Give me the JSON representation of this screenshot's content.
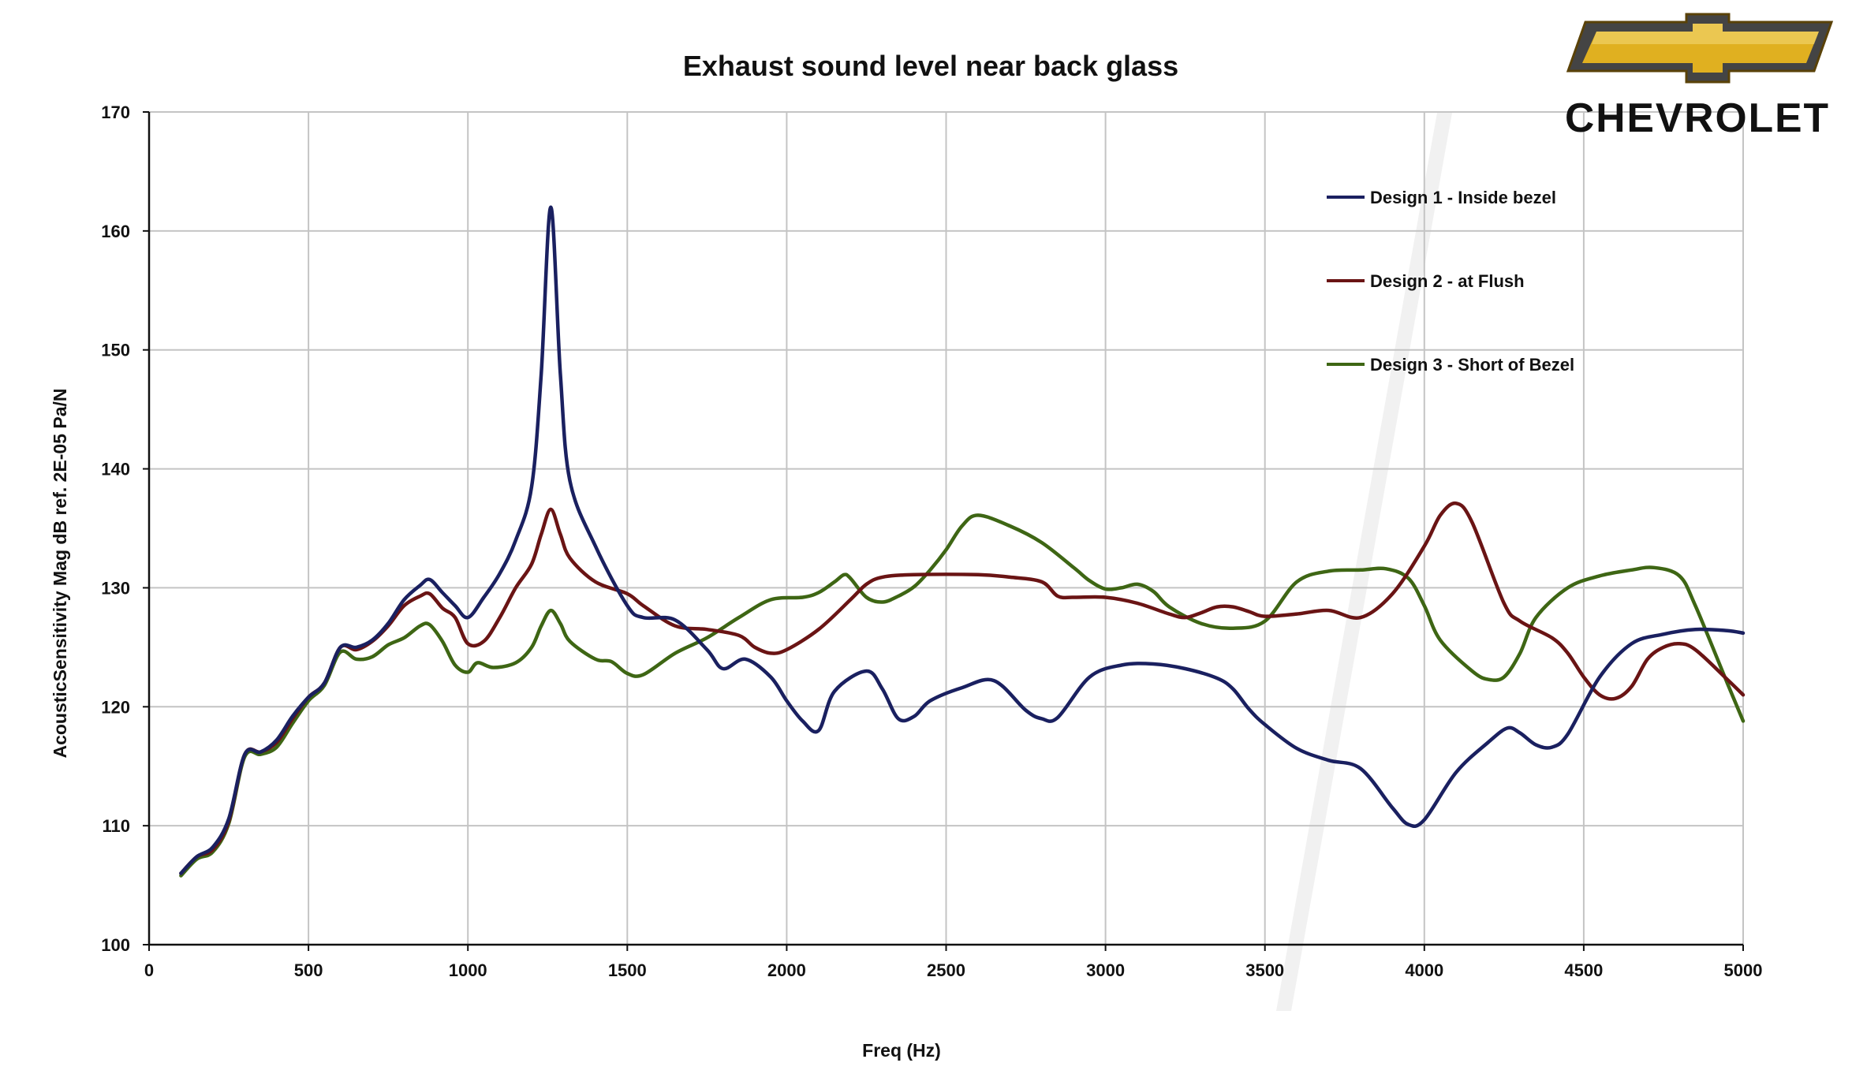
{
  "chart_data": {
    "type": "line",
    "title": "Exhaust sound level near back glass",
    "xlabel": "Freq (Hz)",
    "ylabel": "AcousticSensitivity Mag dB  ref. 2E-05 Pa/N",
    "xlim": [
      0,
      5000
    ],
    "ylim": [
      100,
      170
    ],
    "xticks": [
      0,
      500,
      1000,
      1500,
      2000,
      2500,
      3000,
      3500,
      4000,
      4500,
      5000
    ],
    "yticks": [
      100,
      110,
      120,
      130,
      140,
      150,
      160,
      170
    ],
    "grid": true,
    "legend_position": "top-right",
    "series": [
      {
        "name": "Design 1 - Inside bezel",
        "color": "#1a2060",
        "points": [
          [
            100,
            106
          ],
          [
            150,
            107.4
          ],
          [
            200,
            108.2
          ],
          [
            250,
            110.6
          ],
          [
            300,
            116
          ],
          [
            350,
            116.2
          ],
          [
            400,
            117.2
          ],
          [
            450,
            119.2
          ],
          [
            500,
            120.8
          ],
          [
            550,
            122
          ],
          [
            600,
            125
          ],
          [
            650,
            125
          ],
          [
            700,
            125.6
          ],
          [
            750,
            127
          ],
          [
            800,
            129
          ],
          [
            850,
            130.2
          ],
          [
            880,
            130.7
          ],
          [
            920,
            129.6
          ],
          [
            960,
            128.5
          ],
          [
            1000,
            127.5
          ],
          [
            1050,
            129.2
          ],
          [
            1100,
            131.2
          ],
          [
            1150,
            134
          ],
          [
            1200,
            138.5
          ],
          [
            1230,
            148
          ],
          [
            1260,
            162
          ],
          [
            1290,
            148
          ],
          [
            1320,
            139
          ],
          [
            1400,
            133.5
          ],
          [
            1500,
            128.5
          ],
          [
            1550,
            127.5
          ],
          [
            1650,
            127.3
          ],
          [
            1750,
            124.8
          ],
          [
            1800,
            123.2
          ],
          [
            1870,
            124
          ],
          [
            1950,
            122.5
          ],
          [
            2000,
            120.5
          ],
          [
            2050,
            118.8
          ],
          [
            2100,
            118
          ],
          [
            2150,
            121.3
          ],
          [
            2250,
            123
          ],
          [
            2300,
            121.5
          ],
          [
            2350,
            119
          ],
          [
            2400,
            119.2
          ],
          [
            2450,
            120.5
          ],
          [
            2550,
            121.6
          ],
          [
            2650,
            122.2
          ],
          [
            2750,
            119.7
          ],
          [
            2800,
            119
          ],
          [
            2850,
            119.1
          ],
          [
            2950,
            122.5
          ],
          [
            3050,
            123.5
          ],
          [
            3150,
            123.6
          ],
          [
            3250,
            123.2
          ],
          [
            3350,
            122.4
          ],
          [
            3400,
            121.5
          ],
          [
            3450,
            119.8
          ],
          [
            3500,
            118.5
          ],
          [
            3600,
            116.5
          ],
          [
            3700,
            115.5
          ],
          [
            3800,
            114.8
          ],
          [
            3900,
            111.5
          ],
          [
            3950,
            110.1
          ],
          [
            4000,
            110.5
          ],
          [
            4100,
            114.5
          ],
          [
            4200,
            117
          ],
          [
            4260,
            118.2
          ],
          [
            4300,
            117.8
          ],
          [
            4350,
            116.8
          ],
          [
            4400,
            116.6
          ],
          [
            4450,
            117.7
          ],
          [
            4550,
            122.5
          ],
          [
            4650,
            125.3
          ],
          [
            4750,
            126.1
          ],
          [
            4850,
            126.5
          ],
          [
            4950,
            126.4
          ],
          [
            5000,
            126.2
          ]
        ]
      },
      {
        "name": "Design 2 - at Flush",
        "color": "#6a1414",
        "points": [
          [
            100,
            106
          ],
          [
            150,
            107.4
          ],
          [
            200,
            108
          ],
          [
            250,
            110.4
          ],
          [
            300,
            116
          ],
          [
            350,
            116.2
          ],
          [
            400,
            117
          ],
          [
            450,
            119
          ],
          [
            500,
            120.8
          ],
          [
            550,
            122
          ],
          [
            600,
            125
          ],
          [
            650,
            124.8
          ],
          [
            700,
            125.5
          ],
          [
            750,
            126.8
          ],
          [
            800,
            128.5
          ],
          [
            850,
            129.3
          ],
          [
            880,
            129.5
          ],
          [
            920,
            128.3
          ],
          [
            960,
            127.5
          ],
          [
            1000,
            125.3
          ],
          [
            1050,
            125.5
          ],
          [
            1100,
            127.5
          ],
          [
            1150,
            130
          ],
          [
            1200,
            132
          ],
          [
            1230,
            134.5
          ],
          [
            1260,
            136.6
          ],
          [
            1290,
            134.5
          ],
          [
            1320,
            132.5
          ],
          [
            1400,
            130.5
          ],
          [
            1500,
            129.5
          ],
          [
            1550,
            128.5
          ],
          [
            1650,
            126.8
          ],
          [
            1750,
            126.5
          ],
          [
            1850,
            126
          ],
          [
            1900,
            125
          ],
          [
            1950,
            124.5
          ],
          [
            2000,
            124.8
          ],
          [
            2100,
            126.5
          ],
          [
            2200,
            129
          ],
          [
            2250,
            130.3
          ],
          [
            2300,
            130.9
          ],
          [
            2400,
            131.1
          ],
          [
            2600,
            131.1
          ],
          [
            2700,
            130.9
          ],
          [
            2800,
            130.5
          ],
          [
            2850,
            129.3
          ],
          [
            2900,
            129.2
          ],
          [
            3000,
            129.2
          ],
          [
            3100,
            128.7
          ],
          [
            3200,
            127.8
          ],
          [
            3250,
            127.5
          ],
          [
            3300,
            127.9
          ],
          [
            3350,
            128.4
          ],
          [
            3400,
            128.4
          ],
          [
            3450,
            128
          ],
          [
            3500,
            127.6
          ],
          [
            3600,
            127.8
          ],
          [
            3700,
            128.1
          ],
          [
            3800,
            127.5
          ],
          [
            3900,
            129.5
          ],
          [
            4000,
            133.5
          ],
          [
            4050,
            136.1
          ],
          [
            4100,
            137.1
          ],
          [
            4150,
            135.5
          ],
          [
            4250,
            128.7
          ],
          [
            4300,
            127.2
          ],
          [
            4400,
            125.8
          ],
          [
            4450,
            124.5
          ],
          [
            4500,
            122.5
          ],
          [
            4550,
            121
          ],
          [
            4600,
            120.7
          ],
          [
            4650,
            121.7
          ],
          [
            4700,
            124
          ],
          [
            4750,
            125
          ],
          [
            4800,
            125.3
          ],
          [
            4850,
            124.8
          ],
          [
            4950,
            122.3
          ],
          [
            5000,
            121
          ]
        ]
      },
      {
        "name": "Design 3 - Short of Bezel",
        "color": "#3e6614",
        "points": [
          [
            100,
            105.8
          ],
          [
            150,
            107.2
          ],
          [
            200,
            107.8
          ],
          [
            250,
            110.2
          ],
          [
            300,
            115.8
          ],
          [
            350,
            116
          ],
          [
            400,
            116.6
          ],
          [
            450,
            118.6
          ],
          [
            500,
            120.5
          ],
          [
            550,
            121.8
          ],
          [
            600,
            124.6
          ],
          [
            650,
            124
          ],
          [
            700,
            124.2
          ],
          [
            750,
            125.2
          ],
          [
            800,
            125.8
          ],
          [
            850,
            126.8
          ],
          [
            880,
            126.9
          ],
          [
            920,
            125.5
          ],
          [
            960,
            123.5
          ],
          [
            1000,
            122.9
          ],
          [
            1030,
            123.7
          ],
          [
            1080,
            123.3
          ],
          [
            1150,
            123.7
          ],
          [
            1200,
            125
          ],
          [
            1230,
            126.8
          ],
          [
            1260,
            128.1
          ],
          [
            1290,
            127
          ],
          [
            1320,
            125.5
          ],
          [
            1400,
            124
          ],
          [
            1450,
            123.8
          ],
          [
            1500,
            122.8
          ],
          [
            1550,
            122.7
          ],
          [
            1650,
            124.5
          ],
          [
            1750,
            125.8
          ],
          [
            1850,
            127.5
          ],
          [
            1950,
            129
          ],
          [
            2050,
            129.2
          ],
          [
            2100,
            129.6
          ],
          [
            2150,
            130.5
          ],
          [
            2180,
            131.1
          ],
          [
            2200,
            130.8
          ],
          [
            2250,
            129.2
          ],
          [
            2300,
            128.8
          ],
          [
            2350,
            129.3
          ],
          [
            2400,
            130.1
          ],
          [
            2450,
            131.5
          ],
          [
            2500,
            133.2
          ],
          [
            2550,
            135.2
          ],
          [
            2600,
            136.1
          ],
          [
            2700,
            135.2
          ],
          [
            2800,
            133.8
          ],
          [
            2900,
            131.7
          ],
          [
            2950,
            130.6
          ],
          [
            3000,
            129.9
          ],
          [
            3050,
            130
          ],
          [
            3100,
            130.3
          ],
          [
            3150,
            129.7
          ],
          [
            3200,
            128.4
          ],
          [
            3300,
            127
          ],
          [
            3400,
            126.6
          ],
          [
            3500,
            127.2
          ],
          [
            3600,
            130.5
          ],
          [
            3700,
            131.4
          ],
          [
            3800,
            131.5
          ],
          [
            3880,
            131.6
          ],
          [
            3950,
            130.8
          ],
          [
            4000,
            128.5
          ],
          [
            4050,
            125.6
          ],
          [
            4150,
            123
          ],
          [
            4200,
            122.3
          ],
          [
            4250,
            122.5
          ],
          [
            4300,
            124.5
          ],
          [
            4350,
            127.5
          ],
          [
            4450,
            130
          ],
          [
            4550,
            131
          ],
          [
            4650,
            131.5
          ],
          [
            4720,
            131.7
          ],
          [
            4800,
            131
          ],
          [
            4850,
            128.5
          ],
          [
            4950,
            122
          ],
          [
            5000,
            118.8
          ]
        ]
      }
    ]
  },
  "logo": {
    "text": "CHEVROLET",
    "bowtie_gold": "#e0b020",
    "bowtie_dark": "#5a4208",
    "frame_color": "#444444"
  }
}
